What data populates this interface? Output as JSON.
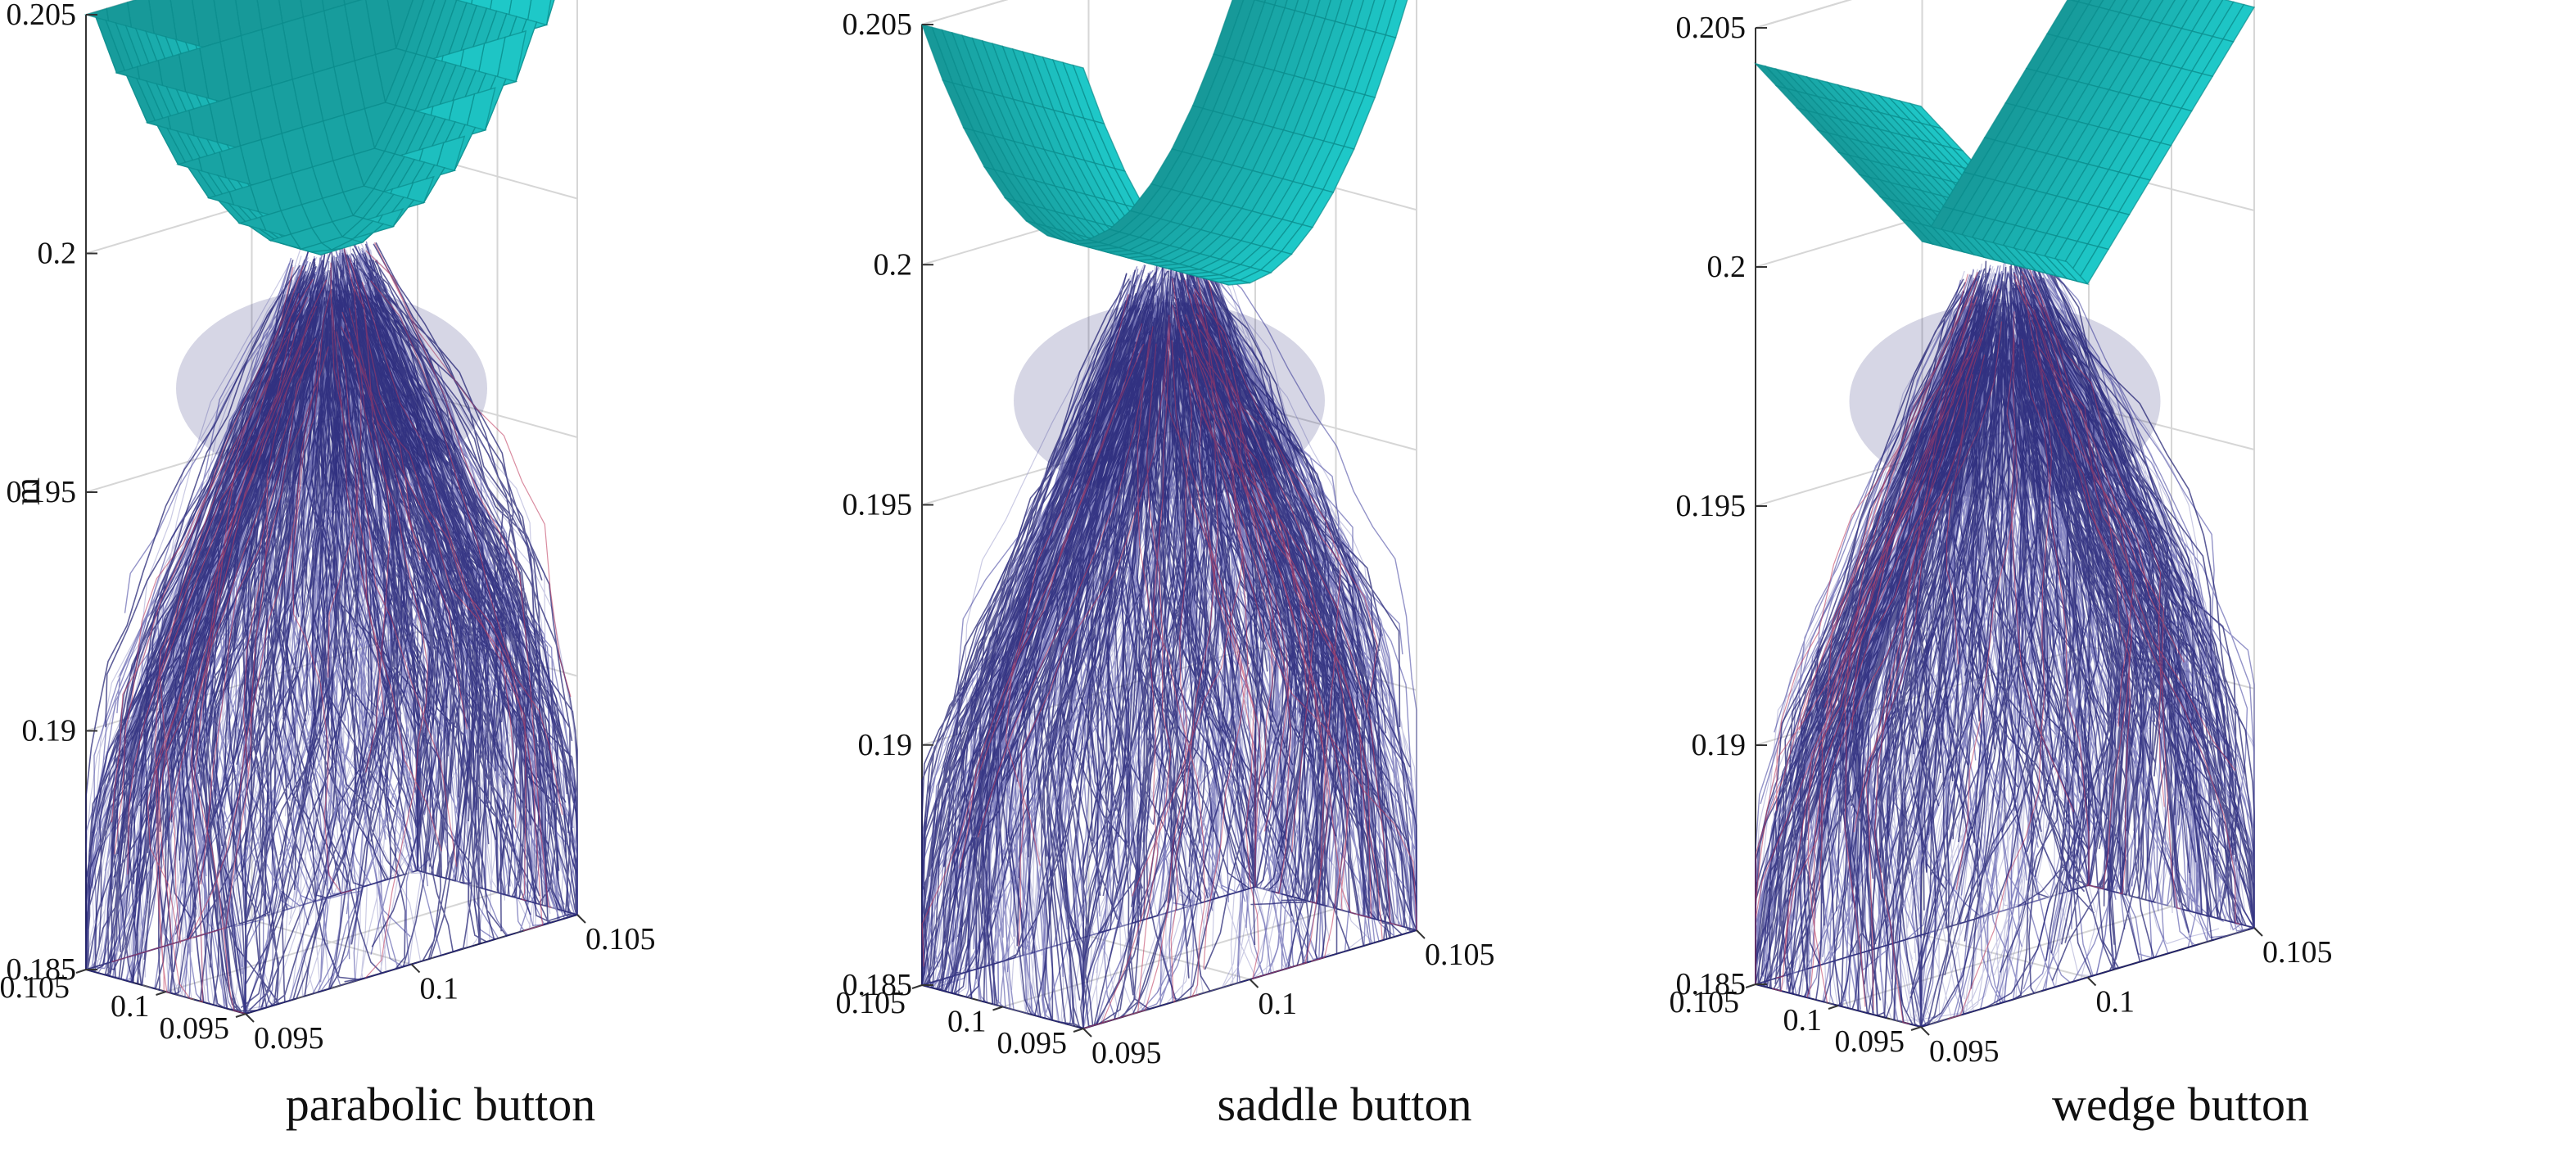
{
  "figure": {
    "z_axis_label": "m",
    "captions": [
      "parabolic button",
      "saddle button",
      "wedge button"
    ]
  },
  "colors": {
    "button_surface": "#1ec8c8",
    "button_edge": "#0a8c8c",
    "fiber_dark": "#1a1a6e",
    "fiber_mid": "#3a3a9a",
    "fiber_red": "#c04060",
    "grid": "#d6d6d6",
    "axis": "#333333"
  },
  "chart_data": [
    {
      "type": "surface3d+fiber_network",
      "title": "parabolic button",
      "button_shape": "parabolic",
      "xlim": [
        0.095,
        0.105
      ],
      "ylim": [
        0.095,
        0.105
      ],
      "zlim": [
        0.185,
        0.205
      ],
      "x_ticks": [
        "0.095",
        "0.1",
        "0.105"
      ],
      "y_ticks": [
        "0.095",
        "0.1",
        "0.105"
      ],
      "z_ticks": [
        "0.185",
        "0.19",
        "0.195",
        "0.2",
        "0.205"
      ],
      "zlabel": "m",
      "button_z_range": [
        0.1995,
        0.205
      ],
      "fiber_z_range": [
        0.185,
        0.1995
      ],
      "grid": true
    },
    {
      "type": "surface3d+fiber_network",
      "title": "saddle button",
      "button_shape": "saddle",
      "xlim": [
        0.095,
        0.105
      ],
      "ylim": [
        0.095,
        0.105
      ],
      "zlim": [
        0.185,
        0.205
      ],
      "x_ticks": [
        "0.095",
        "0.1",
        "0.105"
      ],
      "y_ticks": [
        "0.095",
        "0.1",
        "0.105"
      ],
      "z_ticks": [
        "0.185",
        "0.19",
        "0.195",
        "0.2",
        "0.205"
      ],
      "zlabel": "",
      "button_z_range": [
        0.1995,
        0.205
      ],
      "fiber_z_range": [
        0.185,
        0.1995
      ],
      "grid": true
    },
    {
      "type": "surface3d+fiber_network",
      "title": "wedge button",
      "button_shape": "wedge",
      "xlim": [
        0.095,
        0.105
      ],
      "ylim": [
        0.095,
        0.105
      ],
      "zlim": [
        0.185,
        0.205
      ],
      "x_ticks": [
        "0.095",
        "0.1",
        "0.105"
      ],
      "y_ticks": [
        "0.095",
        "0.1",
        "0.105"
      ],
      "z_ticks": [
        "0.185",
        "0.19",
        "0.195",
        "0.2",
        "0.205"
      ],
      "zlabel": "",
      "button_z_range": [
        0.1995,
        0.2045
      ],
      "fiber_z_range": [
        0.185,
        0.1995
      ],
      "grid": true
    }
  ]
}
